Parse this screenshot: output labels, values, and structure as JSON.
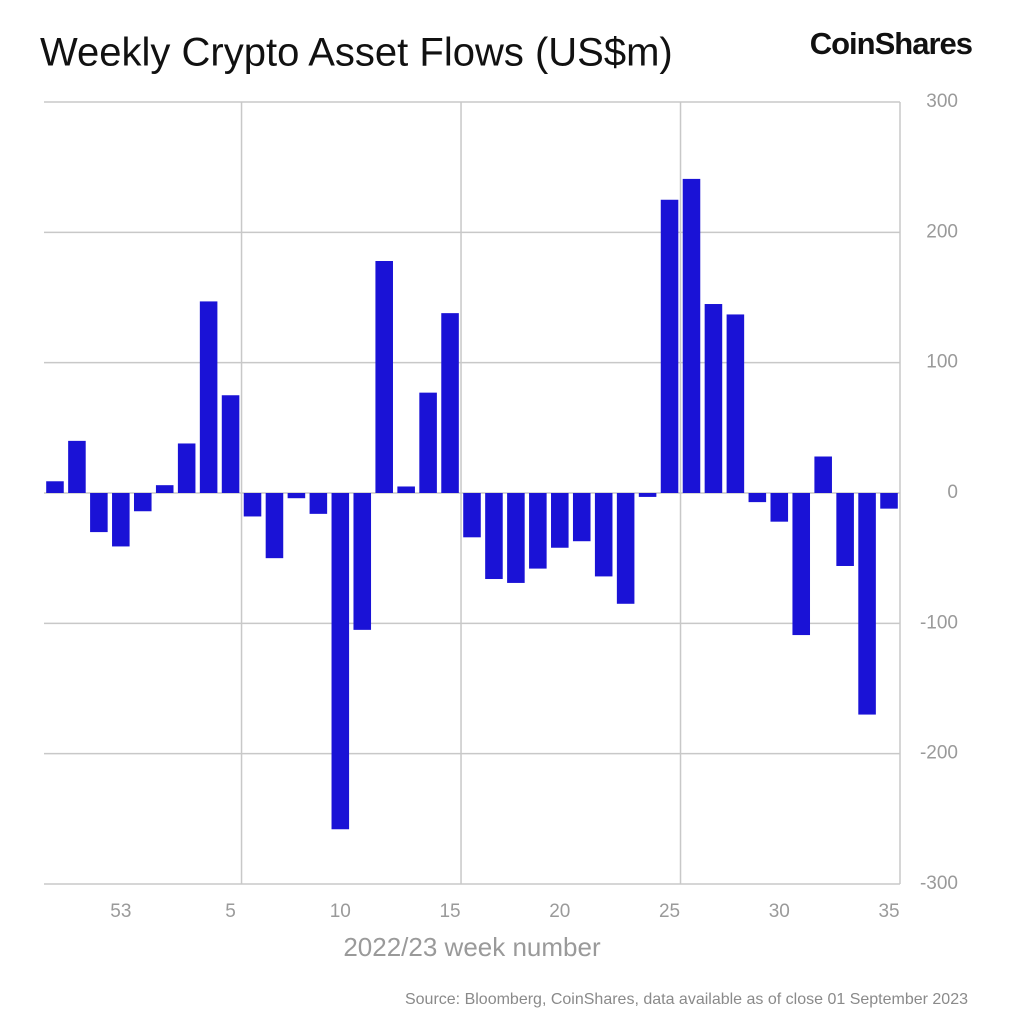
{
  "logo": "CoinShares",
  "source": "Source: Bloomberg, CoinShares, data available as of close 01 September 2023",
  "chart_data": {
    "type": "bar",
    "title": "Weekly Crypto Asset Flows (US$m)",
    "x_label": "2022/23 week number",
    "categories": [
      null,
      null,
      null,
      "53",
      null,
      null,
      null,
      null,
      "5",
      null,
      null,
      null,
      null,
      "10",
      null,
      null,
      null,
      null,
      "15",
      null,
      null,
      null,
      null,
      "20",
      null,
      null,
      null,
      null,
      "25",
      null,
      null,
      null,
      null,
      "30",
      null,
      null,
      null,
      null,
      "35"
    ],
    "values": [
      9,
      40,
      -30,
      -41,
      -14,
      6,
      38,
      147,
      75,
      -18,
      -50,
      -4,
      -16,
      -258,
      -105,
      178,
      5,
      77,
      138,
      -34,
      -66,
      -69,
      -58,
      -42,
      -37,
      -64,
      -85,
      -3,
      225,
      241,
      145,
      137,
      -7,
      -22,
      -109,
      28,
      -56,
      -170,
      -12
    ],
    "color": "#1a12d6",
    "ylim": [
      -300,
      300
    ],
    "yticks": [
      -300,
      -200,
      -100,
      0,
      100,
      200,
      300
    ],
    "grid": true
  }
}
